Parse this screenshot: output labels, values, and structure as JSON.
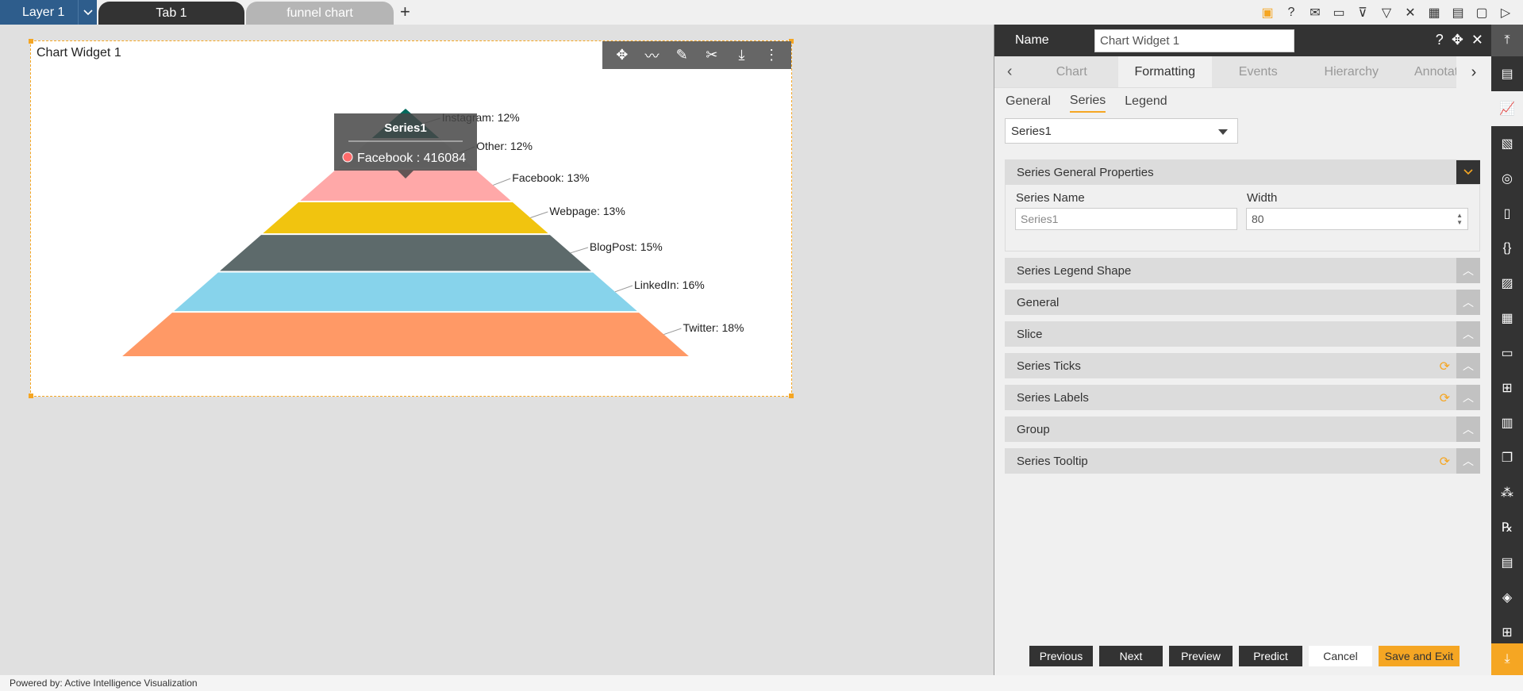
{
  "topbar": {
    "layer_label": "Layer 1",
    "tabs": [
      {
        "label": "Tab 1"
      },
      {
        "label": "funnel chart"
      }
    ],
    "add_tab": "+"
  },
  "widget": {
    "title": "Chart Widget 1"
  },
  "chart_data": {
    "type": "funnel",
    "series_name": "Series1",
    "segments": [
      {
        "label": "Instagram: 12%",
        "name": "Instagram",
        "percent": 12,
        "color": "#00695c"
      },
      {
        "label": "Other: 12%",
        "name": "Other",
        "percent": 12,
        "color": "#e8e8e8"
      },
      {
        "label": "Facebook: 13%",
        "name": "Facebook",
        "percent": 13,
        "color": "#ffa8a8"
      },
      {
        "label": "Webpage: 13%",
        "name": "Webpage",
        "percent": 13,
        "color": "#f1c40f"
      },
      {
        "label": "BlogPost: 15%",
        "name": "BlogPost",
        "percent": 15,
        "color": "#5d6a6b"
      },
      {
        "label": "LinkedIn: 16%",
        "name": "LinkedIn",
        "percent": 16,
        "color": "#87d3eb"
      },
      {
        "label": "Twitter: 18%",
        "name": "Twitter",
        "percent": 18,
        "color": "#ff9966"
      }
    ],
    "tooltip": {
      "title": "Series1",
      "text": "Facebook : 416084",
      "dot_color": "#ff6b6b"
    }
  },
  "panel": {
    "name_label": "Name",
    "name_value": "Chart Widget 1",
    "tabs": [
      "Chart",
      "Formatting",
      "Events",
      "Hierarchy",
      "Annotation"
    ],
    "subtabs": [
      "General",
      "Series",
      "Legend"
    ],
    "series_select": "Series1",
    "general_props": {
      "title": "Series General Properties",
      "series_name_label": "Series Name",
      "series_name_placeholder": "Series1",
      "width_label": "Width",
      "width_value": "80"
    },
    "sections": [
      {
        "title": "Series Legend Shape",
        "refresh": false
      },
      {
        "title": "General",
        "refresh": false
      },
      {
        "title": "Slice",
        "refresh": false
      },
      {
        "title": "Series Ticks",
        "refresh": true
      },
      {
        "title": "Series Labels",
        "refresh": true
      },
      {
        "title": "Group",
        "refresh": false
      },
      {
        "title": "Series Tooltip",
        "refresh": true
      }
    ],
    "buttons": {
      "previous": "Previous",
      "next": "Next",
      "preview": "Preview",
      "predict": "Predict",
      "cancel": "Cancel",
      "save_exit": "Save and Exit"
    }
  },
  "footer": {
    "powered_by": "Powered by: Active Intelligence Visualization"
  }
}
